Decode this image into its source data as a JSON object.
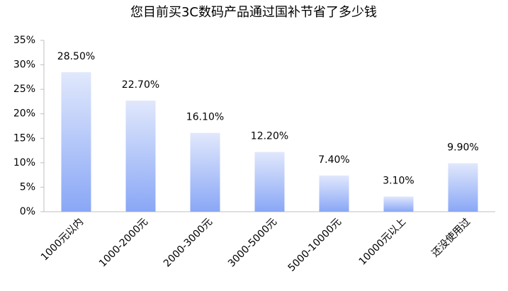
{
  "chart_data": {
    "type": "bar",
    "title": "您目前买3C数码产品通过国补节省了多少钱",
    "categories": [
      "1000元以内",
      "1000-2000元",
      "2000-3000元",
      "3000-5000元",
      "5000-10000元",
      "10000元以上",
      "还没使用过"
    ],
    "values": [
      28.5,
      22.7,
      16.1,
      12.2,
      7.4,
      3.1,
      9.9
    ],
    "value_labels": [
      "28.50%",
      "22.70%",
      "16.10%",
      "12.20%",
      "7.40%",
      "3.10%",
      "9.90%"
    ],
    "gradient": [
      "#e1e8fc",
      "#89a7f6"
    ],
    "ylim": [
      0,
      35
    ],
    "yticks": [
      {
        "value": 0,
        "label": "0%"
      },
      {
        "value": 5,
        "label": "5%"
      },
      {
        "value": 10,
        "label": "10%"
      },
      {
        "value": 15,
        "label": "15%"
      },
      {
        "value": 20,
        "label": "20%"
      },
      {
        "value": 25,
        "label": "25%"
      },
      {
        "value": 30,
        "label": "30%"
      },
      {
        "value": 35,
        "label": "35%"
      }
    ],
    "grid": false
  }
}
